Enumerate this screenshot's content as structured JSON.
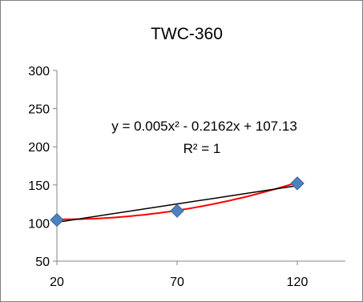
{
  "chart_data": {
    "type": "scatter",
    "title": "TWC-360",
    "xlabel": "",
    "ylabel": "",
    "xlim": [
      20,
      140
    ],
    "ylim": [
      50,
      300
    ],
    "x_ticks": [
      "20",
      "70",
      "120"
    ],
    "y_ticks": [
      "50",
      "100",
      "150",
      "200",
      "250",
      "300"
    ],
    "series": [
      {
        "marker": "diamond",
        "color": "#4f81bd",
        "points": [
          {
            "x": 20,
            "y": 104
          },
          {
            "x": 70,
            "y": 116
          },
          {
            "x": 120,
            "y": 152
          }
        ]
      }
    ],
    "trendlines": [
      {
        "type": "polynomial",
        "color": "#ff0000",
        "equation": "y = 0.005x² - 0.2162x + 107.13",
        "r_squared": "R² = 1",
        "coefficients": [
          0.005,
          -0.2162,
          107.13
        ]
      },
      {
        "type": "linear",
        "color": "#000000",
        "from": {
          "x": 20,
          "y": 101
        },
        "to": {
          "x": 120,
          "y": 149
        }
      }
    ],
    "grid": false,
    "legend": "none"
  }
}
